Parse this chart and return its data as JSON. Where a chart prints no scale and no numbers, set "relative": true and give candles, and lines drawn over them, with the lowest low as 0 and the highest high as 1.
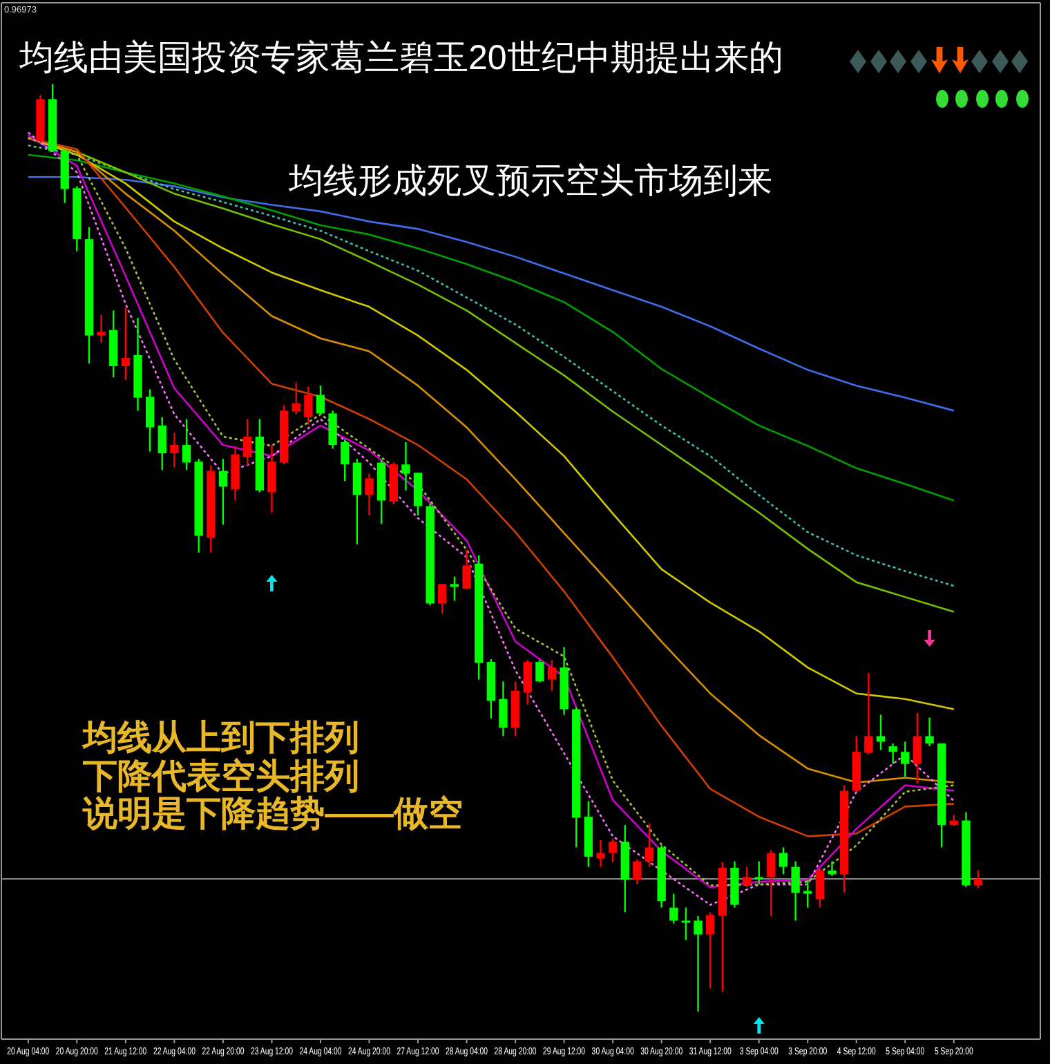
{
  "chart_data": {
    "type": "candlestick",
    "title": "均线由美国投资专家葛兰碧玉20世纪中期提出来的",
    "annotations": [
      "0.96973",
      "均线形成死叉预示空头市场到来",
      "均线从上到下排列",
      "下降代表空头排列",
      "说明是下降趋势——做空"
    ],
    "relative": true,
    "categories": [
      "20 Aug 04:00",
      null,
      null,
      null,
      "20 Aug 20:00",
      null,
      null,
      null,
      "21 Aug 12:00",
      null,
      null,
      null,
      "22 Aug 04:00",
      null,
      null,
      null,
      "22 Aug 20:00",
      null,
      null,
      null,
      "23 Aug 12:00",
      null,
      null,
      null,
      "24 Aug 04:00",
      null,
      null,
      null,
      "24 Aug 20:00",
      null,
      null,
      null,
      "27 Aug 12:00",
      null,
      null,
      null,
      "28 Aug 04:00",
      null,
      null,
      null,
      "28 Aug 20:00",
      null,
      null,
      null,
      "29 Aug 12:00",
      null,
      null,
      null,
      "30 Aug 04:00",
      null,
      null,
      null,
      "30 Aug 20:00",
      null,
      null,
      null,
      "31 Aug 12:00",
      null,
      null,
      null,
      "3 Sep 04:00",
      null,
      null,
      null,
      "3 Sep 20:00",
      null,
      null,
      null,
      "4 Sep 12:00",
      null,
      null,
      null,
      "5 Sep 04:00",
      null,
      null,
      null,
      "5 Sep 20:00",
      null,
      null
    ],
    "ohlc": [
      null,
      [
        0.939,
        0.988,
        0.937,
        0.984
      ],
      [
        0.984,
        1.0,
        0.927,
        0.928
      ],
      [
        0.928,
        0.93,
        0.872,
        0.887
      ],
      [
        0.888,
        0.89,
        0.82,
        0.833
      ],
      [
        0.833,
        0.846,
        0.699,
        0.729
      ],
      [
        0.729,
        0.751,
        0.721,
        0.733
      ],
      [
        0.735,
        0.756,
        0.684,
        0.696
      ],
      [
        0.696,
        0.759,
        0.681,
        0.705
      ],
      [
        0.708,
        0.748,
        0.648,
        0.662
      ],
      [
        0.663,
        0.671,
        0.604,
        0.63
      ],
      [
        0.632,
        0.641,
        0.584,
        0.602
      ],
      [
        0.602,
        0.624,
        0.587,
        0.611
      ],
      [
        0.611,
        0.639,
        0.584,
        0.592
      ],
      [
        0.593,
        0.596,
        0.495,
        0.513
      ],
      [
        0.511,
        0.589,
        0.495,
        0.583
      ],
      [
        0.583,
        0.596,
        0.525,
        0.566
      ],
      [
        0.563,
        0.61,
        0.551,
        0.601
      ],
      [
        0.598,
        0.639,
        0.589,
        0.62
      ],
      [
        0.62,
        0.639,
        0.56,
        0.562
      ],
      [
        0.56,
        0.611,
        0.538,
        0.593
      ],
      [
        0.592,
        0.654,
        0.59,
        0.648
      ],
      [
        0.647,
        0.678,
        0.644,
        0.656
      ],
      [
        0.641,
        0.674,
        0.633,
        0.665
      ],
      [
        0.665,
        0.675,
        0.644,
        0.645
      ],
      [
        0.645,
        0.648,
        0.607,
        0.611
      ],
      [
        0.614,
        0.617,
        0.572,
        0.59
      ],
      [
        0.592,
        0.596,
        0.504,
        0.557
      ],
      [
        0.557,
        0.58,
        0.535,
        0.575
      ],
      [
        0.592,
        0.595,
        0.526,
        0.551
      ],
      [
        0.55,
        0.592,
        0.547,
        0.59
      ],
      [
        0.59,
        0.614,
        0.562,
        0.58
      ],
      [
        0.581,
        0.581,
        0.535,
        0.545
      ],
      [
        0.545,
        0.548,
        0.438,
        0.44
      ],
      [
        0.44,
        0.461,
        0.429,
        0.461
      ],
      [
        0.461,
        0.469,
        0.443,
        0.458
      ],
      [
        0.456,
        0.498,
        0.455,
        0.481
      ],
      [
        0.483,
        0.492,
        0.358,
        0.376
      ],
      [
        0.377,
        0.38,
        0.316,
        0.335
      ],
      [
        0.337,
        0.356,
        0.297,
        0.306
      ],
      [
        0.306,
        0.356,
        0.297,
        0.346
      ],
      [
        0.344,
        0.379,
        0.331,
        0.377
      ],
      [
        0.377,
        0.379,
        0.355,
        0.356
      ],
      [
        0.358,
        0.379,
        0.346,
        0.371
      ],
      [
        0.371,
        0.393,
        0.32,
        0.326
      ],
      [
        0.326,
        0.328,
        0.177,
        0.209
      ],
      [
        0.21,
        0.227,
        0.156,
        0.167
      ],
      [
        0.165,
        0.185,
        0.156,
        0.171
      ],
      [
        0.171,
        0.186,
        0.161,
        0.183
      ],
      [
        0.183,
        0.201,
        0.107,
        0.142
      ],
      [
        0.142,
        0.164,
        0.137,
        0.162
      ],
      [
        0.162,
        0.203,
        0.156,
        0.177
      ],
      [
        0.177,
        0.179,
        0.112,
        0.119
      ],
      [
        0.112,
        0.127,
        0.095,
        0.098
      ],
      [
        0.098,
        0.112,
        0.077,
        0.097
      ],
      [
        0.098,
        0.103,
        0,
        0.083
      ],
      [
        0.083,
        0.107,
        0.025,
        0.104
      ],
      [
        0.103,
        0.161,
        0.021,
        0.155
      ],
      [
        0.155,
        0.162,
        0.112,
        0.115
      ],
      [
        0.136,
        0.156,
        0.134,
        0.145
      ],
      [
        0.145,
        0.162,
        0.137,
        0.145
      ],
      [
        0.145,
        0.174,
        0.103,
        0.171
      ],
      [
        0.171,
        0.177,
        0.148,
        0.156
      ],
      [
        0.156,
        0.162,
        0.098,
        0.128
      ],
      [
        0.13,
        0.142,
        0.112,
        0.127
      ],
      [
        0.121,
        0.154,
        0.112,
        0.152
      ],
      [
        0.152,
        0.162,
        0.146,
        0.148
      ],
      [
        0.148,
        0.244,
        0.128,
        0.238
      ],
      [
        0.238,
        0.297,
        0.237,
        0.28
      ],
      [
        0.279,
        0.365,
        0.277,
        0.297
      ],
      [
        0.297,
        0.32,
        0.282,
        0.291
      ],
      [
        0.286,
        0.289,
        0.267,
        0.28
      ],
      [
        0.28,
        0.291,
        0.253,
        0.267
      ],
      [
        0.267,
        0.322,
        0.246,
        0.297
      ],
      [
        0.297,
        0.317,
        0.286,
        0.289
      ],
      [
        0.289,
        0.289,
        0.177,
        0.201
      ],
      [
        0.201,
        0.212,
        0.2,
        0.206
      ],
      [
        0.206,
        0.215,
        0.134,
        0.136
      ],
      [
        0.136,
        0.152,
        0.133,
        0.143
      ]
    ],
    "colors": [
      null,
      "#ff0000",
      "#00ff00",
      "#00ff00",
      "#00ff00",
      "#00ff00",
      "#ff0000",
      "#00ff00",
      "#ff0000",
      "#00ff00",
      "#00ff00",
      "#00ff00",
      "#ff0000",
      "#00ff00",
      "#00ff00",
      "#ff0000",
      "#00ff00",
      "#ff0000",
      "#ff0000",
      "#00ff00",
      "#ff0000",
      "#ff0000",
      "#ff0000",
      "#ff0000",
      "#00ff00",
      "#00ff00",
      "#00ff00",
      "#00ff00",
      "#ff0000",
      "#00ff00",
      "#ff0000",
      "#00ff00",
      "#00ff00",
      "#00ff00",
      "#ff0000",
      "#00ff00",
      "#ff0000",
      "#00ff00",
      "#00ff00",
      "#00ff00",
      "#ff0000",
      "#ff0000",
      "#00ff00",
      "#ff0000",
      "#00ff00",
      "#00ff00",
      "#00ff00",
      "#ff0000",
      "#ff0000",
      "#00ff00",
      "#ff0000",
      "#ff0000",
      "#00ff00",
      "#00ff00",
      "#00ff00",
      "#00ff00",
      "#ff0000",
      "#ff0000",
      "#00ff00",
      "#ff0000",
      "#00ff00",
      "#ff0000",
      "#00ff00",
      "#00ff00",
      "#00ff00",
      "#ff0000",
      "#00ff00",
      "#ff0000",
      "#ff0000",
      "#ff0000",
      "#00ff00",
      "#00ff00",
      "#00ff00",
      "#ff0000",
      "#00ff00",
      "#00ff00",
      "#ff0000",
      "#00ff00",
      "#ff0000"
    ],
    "series": [
      {
        "type": "line",
        "color": "#3f6fe8",
        "line_style": "solid",
        "x": [
          "20 Aug 04:00",
          "20 Aug 20:00",
          "21 Aug 12:00",
          "22 Aug 04:00",
          "22 Aug 20:00",
          "23 Aug 12:00",
          "24 Aug 04:00",
          "24 Aug 20:00",
          "27 Aug 12:00",
          "28 Aug 04:00",
          "28 Aug 20:00",
          "29 Aug 12:00",
          "30 Aug 04:00",
          "30 Aug 20:00",
          "31 Aug 12:00",
          "3 Sep 04:00",
          "3 Sep 20:00",
          "4 Sep 12:00",
          "5 Sep 04:00",
          "5 Sep 20:00"
        ],
        "values": [
          0.9,
          0.9,
          0.897,
          0.89,
          0.878,
          0.87,
          0.863,
          0.852,
          0.844,
          0.83,
          0.814,
          0.796,
          0.778,
          0.76,
          0.739,
          0.715,
          0.692,
          0.675,
          0.662,
          0.648
        ]
      },
      {
        "type": "line",
        "color": "#00a000",
        "line_style": "solid",
        "x": [
          "20 Aug 04:00",
          "20 Aug 20:00",
          "21 Aug 12:00",
          "22 Aug 04:00",
          "22 Aug 20:00",
          "23 Aug 12:00",
          "24 Aug 04:00",
          "24 Aug 20:00",
          "27 Aug 12:00",
          "28 Aug 04:00",
          "28 Aug 20:00",
          "29 Aug 12:00",
          "30 Aug 04:00",
          "30 Aug 20:00",
          "31 Aug 12:00",
          "3 Sep 04:00",
          "3 Sep 20:00",
          "4 Sep 12:00",
          "5 Sep 04:00",
          "5 Sep 20:00"
        ],
        "values": [
          0.924,
          0.918,
          0.905,
          0.893,
          0.879,
          0.864,
          0.848,
          0.838,
          0.823,
          0.806,
          0.787,
          0.765,
          0.733,
          0.693,
          0.662,
          0.632,
          0.61,
          0.586,
          0.569,
          0.551
        ]
      },
      {
        "type": "line",
        "color": "#40c0b0",
        "line_style": "dotted",
        "x": [
          "20 Aug 04:00",
          "20 Aug 20:00",
          "21 Aug 12:00",
          "22 Aug 04:00",
          "22 Aug 20:00",
          "23 Aug 12:00",
          "24 Aug 04:00",
          "24 Aug 20:00",
          "27 Aug 12:00",
          "28 Aug 04:00",
          "28 Aug 20:00",
          "29 Aug 12:00",
          "30 Aug 04:00",
          "30 Aug 20:00",
          "31 Aug 12:00",
          "3 Sep 04:00",
          "3 Sep 20:00",
          "4 Sep 12:00",
          "5 Sep 04:00",
          "5 Sep 20:00"
        ],
        "values": [
          0.934,
          0.924,
          0.905,
          0.887,
          0.873,
          0.858,
          0.842,
          0.82,
          0.799,
          0.77,
          0.741,
          0.706,
          0.669,
          0.632,
          0.599,
          0.557,
          0.517,
          0.492,
          0.475,
          0.459
        ]
      },
      {
        "type": "line",
        "color": "#78c000",
        "line_style": "solid",
        "x": [
          "20 Aug 04:00",
          "20 Aug 20:00",
          "21 Aug 12:00",
          "22 Aug 04:00",
          "22 Aug 20:00",
          "23 Aug 12:00",
          "24 Aug 04:00",
          "24 Aug 20:00",
          "27 Aug 12:00",
          "28 Aug 04:00",
          "28 Aug 20:00",
          "29 Aug 12:00",
          "30 Aug 04:00",
          "30 Aug 20:00",
          "31 Aug 12:00",
          "3 Sep 04:00",
          "3 Sep 20:00",
          "4 Sep 12:00",
          "5 Sep 04:00",
          "5 Sep 20:00"
        ],
        "values": [
          0.942,
          0.927,
          0.905,
          0.882,
          0.866,
          0.849,
          0.833,
          0.809,
          0.784,
          0.756,
          0.721,
          0.686,
          0.647,
          0.611,
          0.575,
          0.538,
          0.499,
          0.463,
          0.447,
          0.431
        ]
      },
      {
        "type": "line",
        "color": "#d0c800",
        "line_style": "solid",
        "x": [
          "20 Aug 04:00",
          "20 Aug 20:00",
          "21 Aug 12:00",
          "22 Aug 04:00",
          "22 Aug 20:00",
          "23 Aug 12:00",
          "24 Aug 04:00",
          "24 Aug 20:00",
          "27 Aug 12:00",
          "28 Aug 04:00",
          "28 Aug 20:00",
          "29 Aug 12:00",
          "30 Aug 04:00",
          "30 Aug 20:00",
          "31 Aug 12:00",
          "3 Sep 04:00",
          "3 Sep 20:00",
          "4 Sep 12:00",
          "5 Sep 04:00",
          "5 Sep 20:00"
        ],
        "values": [
          0.942,
          0.924,
          0.893,
          0.852,
          0.823,
          0.797,
          0.778,
          0.76,
          0.729,
          0.692,
          0.647,
          0.599,
          0.537,
          0.477,
          0.441,
          0.41,
          0.371,
          0.343,
          0.337,
          0.326
        ]
      },
      {
        "type": "line",
        "color": "#d89000",
        "line_style": "solid",
        "x": [
          "20 Aug 04:00",
          "20 Aug 20:00",
          "21 Aug 12:00",
          "22 Aug 04:00",
          "22 Aug 20:00",
          "23 Aug 12:00",
          "24 Aug 04:00",
          "24 Aug 20:00",
          "27 Aug 12:00",
          "28 Aug 04:00",
          "28 Aug 20:00",
          "29 Aug 12:00",
          "30 Aug 04:00",
          "30 Aug 20:00",
          "31 Aug 12:00",
          "3 Sep 04:00",
          "3 Sep 20:00",
          "4 Sep 12:00",
          "5 Sep 04:00",
          "5 Sep 20:00"
        ],
        "values": [
          0.942,
          0.927,
          0.882,
          0.842,
          0.795,
          0.75,
          0.726,
          0.712,
          0.675,
          0.63,
          0.574,
          0.516,
          0.458,
          0.399,
          0.343,
          0.298,
          0.262,
          0.247,
          0.252,
          0.247
        ]
      },
      {
        "type": "line",
        "color": "#d04000",
        "line_style": "solid",
        "x": [
          "20 Aug 04:00",
          "20 Aug 20:00",
          "21 Aug 12:00",
          "22 Aug 04:00",
          "22 Aug 20:00",
          "23 Aug 12:00",
          "24 Aug 04:00",
          "24 Aug 20:00",
          "27 Aug 12:00",
          "28 Aug 04:00",
          "28 Aug 20:00",
          "29 Aug 12:00",
          "30 Aug 04:00",
          "30 Aug 20:00",
          "31 Aug 12:00",
          "3 Sep 04:00",
          "3 Sep 20:00",
          "4 Sep 12:00",
          "5 Sep 04:00",
          "5 Sep 20:00"
        ],
        "values": [
          0.942,
          0.93,
          0.867,
          0.803,
          0.732,
          0.677,
          0.663,
          0.639,
          0.611,
          0.574,
          0.517,
          0.453,
          0.382,
          0.308,
          0.24,
          0.21,
          0.189,
          0.192,
          0.221,
          0.224
        ]
      },
      {
        "type": "line",
        "color": "#d000d0",
        "line_style": "solid",
        "x": [
          "20 Aug 04:00",
          "20 Aug 20:00",
          "21 Aug 12:00",
          "22 Aug 04:00",
          "22 Aug 20:00",
          "23 Aug 12:00",
          "24 Aug 04:00",
          "24 Aug 20:00",
          "27 Aug 12:00",
          "28 Aug 04:00",
          "28 Aug 20:00",
          "29 Aug 12:00",
          "30 Aug 04:00",
          "30 Aug 20:00",
          "31 Aug 12:00",
          "3 Sep 04:00",
          "3 Sep 20:00",
          "4 Sep 12:00",
          "5 Sep 04:00",
          "5 Sep 20:00"
        ],
        "values": [
          0.945,
          0.912,
          0.793,
          0.672,
          0.611,
          0.599,
          0.632,
          0.605,
          0.562,
          0.508,
          0.399,
          0.361,
          0.228,
          0.173,
          0.134,
          0.14,
          0.142,
          0.197,
          0.244,
          0.238
        ]
      },
      {
        "type": "line",
        "color": "#ff70ff",
        "line_style": "dotted",
        "x": [
          "20 Aug 04:00",
          "20 Aug 20:00",
          "21 Aug 12:00",
          "22 Aug 04:00",
          "22 Aug 20:00",
          "23 Aug 12:00",
          "24 Aug 04:00",
          "24 Aug 20:00",
          "27 Aug 12:00",
          "28 Aug 04:00",
          "28 Aug 20:00",
          "30 Aug 04:00",
          "30 Aug 20:00",
          "31 Aug 12:00",
          "3 Sep 04:00",
          "3 Sep 20:00",
          "4 Sep 12:00",
          "5 Sep 04:00",
          "5 Sep 20:00"
        ],
        "values": [
          0.948,
          0.905,
          0.763,
          0.644,
          0.58,
          0.599,
          0.639,
          0.592,
          0.532,
          0.49,
          0.368,
          0.189,
          0.152,
          0.115,
          0.137,
          0.137,
          0.237,
          0.277,
          0.227
        ]
      },
      {
        "type": "line",
        "color": "#a8c040",
        "line_style": "dotted",
        "x": [
          "20 Aug 04:00",
          "20 Aug 20:00",
          "21 Aug 12:00",
          "22 Aug 04:00",
          "22 Aug 20:00",
          "23 Aug 12:00",
          "24 Aug 04:00",
          "24 Aug 20:00",
          "27 Aug 12:00",
          "28 Aug 04:00",
          "28 Aug 20:00",
          "29 Aug 12:00",
          "30 Aug 04:00",
          "30 Aug 20:00",
          "31 Aug 12:00",
          "3 Sep 04:00",
          "3 Sep 20:00",
          "4 Sep 12:00",
          "5 Sep 04:00",
          "5 Sep 20:00"
        ],
        "values": [
          0.942,
          0.924,
          0.823,
          0.703,
          0.62,
          0.61,
          0.644,
          0.607,
          0.569,
          0.498,
          0.413,
          0.383,
          0.249,
          0.18,
          0.136,
          0.137,
          0.14,
          0.179,
          0.237,
          0.244
        ]
      }
    ],
    "ref_lines": [
      {
        "axis": "y",
        "value": 0.143,
        "color": "#7f7f7f"
      }
    ]
  }
}
